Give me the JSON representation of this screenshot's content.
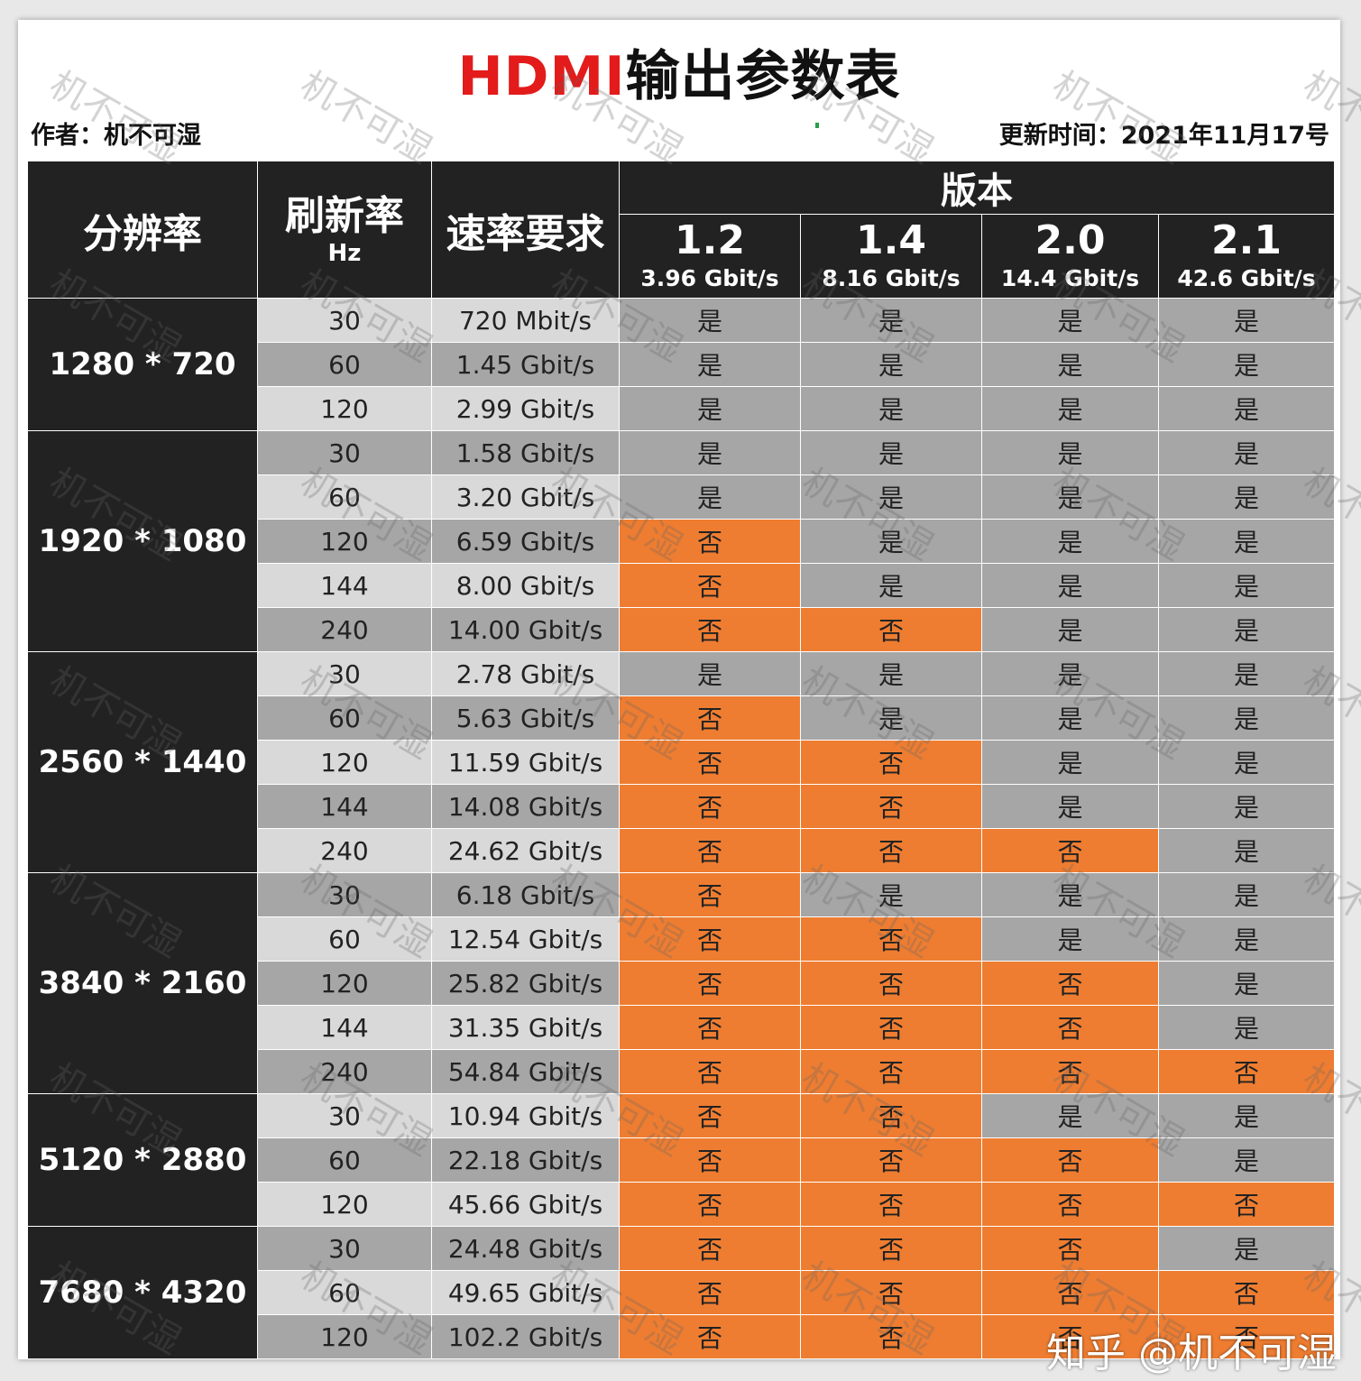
{
  "title": {
    "brand": "HDMI",
    "rest": "输出参数表"
  },
  "author": {
    "label": "作者：",
    "name": "机不可湿"
  },
  "updated": {
    "label": "更新时间：",
    "date": "2021年11月17号"
  },
  "headers": {
    "resolution": "分辨率",
    "refresh": "刷新率",
    "refresh_unit": "Hz",
    "bandwidth": "速率要求",
    "version": "版本",
    "versions": [
      {
        "num": "1.2",
        "bw": "3.96 Gbit/s"
      },
      {
        "num": "1.4",
        "bw": "8.16 Gbit/s"
      },
      {
        "num": "2.0",
        "bw": "14.4 Gbit/s"
      },
      {
        "num": "2.1",
        "bw": "42.6 Gbit/s"
      }
    ]
  },
  "yes": "是",
  "no": "否",
  "groups": [
    {
      "res": "1280 * 720",
      "rows": [
        {
          "hz": "30",
          "bw": "720 Mbit/s",
          "s": [
            1,
            1,
            1,
            1
          ]
        },
        {
          "hz": "60",
          "bw": "1.45 Gbit/s",
          "s": [
            1,
            1,
            1,
            1
          ]
        },
        {
          "hz": "120",
          "bw": "2.99 Gbit/s",
          "s": [
            1,
            1,
            1,
            1
          ]
        }
      ]
    },
    {
      "res": "1920 * 1080",
      "rows": [
        {
          "hz": "30",
          "bw": "1.58 Gbit/s",
          "s": [
            1,
            1,
            1,
            1
          ]
        },
        {
          "hz": "60",
          "bw": "3.20 Gbit/s",
          "s": [
            1,
            1,
            1,
            1
          ]
        },
        {
          "hz": "120",
          "bw": "6.59 Gbit/s",
          "s": [
            0,
            1,
            1,
            1
          ]
        },
        {
          "hz": "144",
          "bw": "8.00 Gbit/s",
          "s": [
            0,
            1,
            1,
            1
          ]
        },
        {
          "hz": "240",
          "bw": "14.00 Gbit/s",
          "s": [
            0,
            0,
            1,
            1
          ]
        }
      ]
    },
    {
      "res": "2560 * 1440",
      "rows": [
        {
          "hz": "30",
          "bw": "2.78 Gbit/s",
          "s": [
            1,
            1,
            1,
            1
          ]
        },
        {
          "hz": "60",
          "bw": "5.63 Gbit/s",
          "s": [
            0,
            1,
            1,
            1
          ]
        },
        {
          "hz": "120",
          "bw": "11.59 Gbit/s",
          "s": [
            0,
            0,
            1,
            1
          ]
        },
        {
          "hz": "144",
          "bw": "14.08 Gbit/s",
          "s": [
            0,
            0,
            1,
            1
          ]
        },
        {
          "hz": "240",
          "bw": "24.62 Gbit/s",
          "s": [
            0,
            0,
            0,
            1
          ]
        }
      ]
    },
    {
      "res": "3840 * 2160",
      "rows": [
        {
          "hz": "30",
          "bw": "6.18 Gbit/s",
          "s": [
            0,
            1,
            1,
            1
          ]
        },
        {
          "hz": "60",
          "bw": "12.54 Gbit/s",
          "s": [
            0,
            0,
            1,
            1
          ]
        },
        {
          "hz": "120",
          "bw": "25.82 Gbit/s",
          "s": [
            0,
            0,
            0,
            1
          ]
        },
        {
          "hz": "144",
          "bw": "31.35 Gbit/s",
          "s": [
            0,
            0,
            0,
            1
          ]
        },
        {
          "hz": "240",
          "bw": "54.84 Gbit/s",
          "s": [
            0,
            0,
            0,
            0
          ]
        }
      ]
    },
    {
      "res": "5120 * 2880",
      "rows": [
        {
          "hz": "30",
          "bw": "10.94 Gbit/s",
          "s": [
            0,
            0,
            1,
            1
          ]
        },
        {
          "hz": "60",
          "bw": "22.18 Gbit/s",
          "s": [
            0,
            0,
            0,
            1
          ]
        },
        {
          "hz": "120",
          "bw": "45.66 Gbit/s",
          "s": [
            0,
            0,
            0,
            0
          ]
        }
      ]
    },
    {
      "res": "7680 * 4320",
      "rows": [
        {
          "hz": "30",
          "bw": "24.48 Gbit/s",
          "s": [
            0,
            0,
            0,
            1
          ]
        },
        {
          "hz": "60",
          "bw": "49.65 Gbit/s",
          "s": [
            0,
            0,
            0,
            0
          ]
        },
        {
          "hz": "120",
          "bw": "102.2 Gbit/s",
          "s": [
            0,
            0,
            0,
            0
          ]
        }
      ]
    }
  ],
  "watermark_text": "机不可湿",
  "zhihu_credit": "知乎 @机不可湿"
}
